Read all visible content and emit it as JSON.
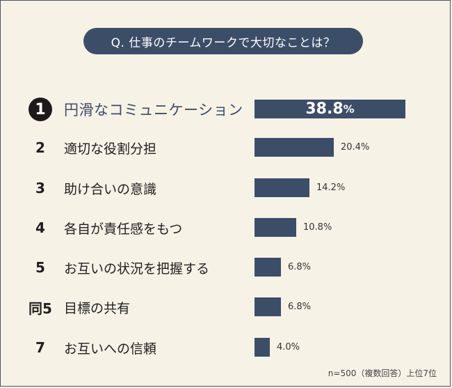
{
  "question": "Q. 仕事のチームワークで大切なことは？",
  "footnote": "n=500（複数回答）上位7位",
  "colors": {
    "bar": "#3c4d68",
    "background": "#f7f2e6",
    "rank1_badge": "#1e1a19"
  },
  "chart_data": {
    "type": "bar",
    "orientation": "horizontal",
    "unit": "%",
    "categories": [
      "円滑なコミュニケーション",
      "適切な役割分担",
      "助け合いの意識",
      "各自が責任感をもつ",
      "お互いの状況を把握する",
      "目標の共有",
      "お互いへの信頼"
    ],
    "ranks": [
      "1",
      "2",
      "3",
      "4",
      "5",
      "同5",
      "7"
    ],
    "values": [
      38.8,
      20.4,
      14.2,
      10.8,
      6.8,
      6.8,
      4.0
    ],
    "value_labels": [
      "38.8%",
      "20.4%",
      "14.2%",
      "10.8%",
      "6.8%",
      "6.8%",
      "4.0%"
    ],
    "top_label": {
      "number": "38.8",
      "unit": "%"
    },
    "xlim": [
      0,
      38.8
    ],
    "grid": false,
    "legend": "none"
  }
}
